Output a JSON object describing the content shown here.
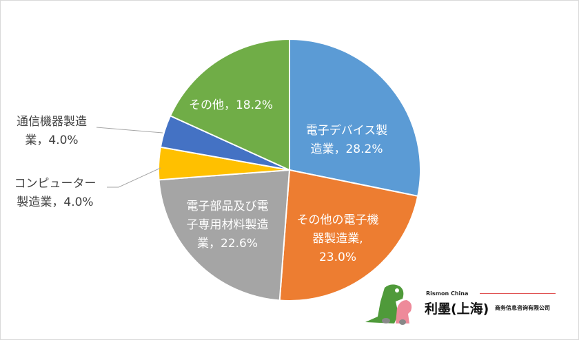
{
  "chart_data": {
    "type": "pie",
    "start_angle": "top, clockwise",
    "slices": [
      {
        "label_lines": [
          "電子デバイス製",
          "造業，28.2%"
        ],
        "category": "電子デバイス製造業",
        "value": 28.2,
        "color": "#5B9BD5"
      },
      {
        "label_lines": [
          "その他の電子機",
          "器製造業,",
          "23.0%"
        ],
        "category": "その他の電子機器製造業",
        "value": 23.0,
        "color": "#ED7D31"
      },
      {
        "label_lines": [
          "電子部品及び電",
          "子専用材料製造",
          "業，22.6%"
        ],
        "category": "電子部品及び電子専用材料製造業",
        "value": 22.6,
        "color": "#A5A5A5"
      },
      {
        "label_lines": [
          "コンピューター",
          "製造業，4.0%"
        ],
        "category": "コンピューター製造業",
        "value": 4.0,
        "color": "#FFC000"
      },
      {
        "label_lines": [
          "通信機器製造",
          "業，4.0%"
        ],
        "category": "通信機器製造業",
        "value": 4.0,
        "color": "#4472C4"
      },
      {
        "label_lines": [
          "その他，18.2%"
        ],
        "category": "その他",
        "value": 18.2,
        "color": "#70AD47"
      }
    ]
  },
  "logo": {
    "en": "Rismon China",
    "cn": "利墨(上海)",
    "sub": "商务信息咨询有限公司"
  }
}
